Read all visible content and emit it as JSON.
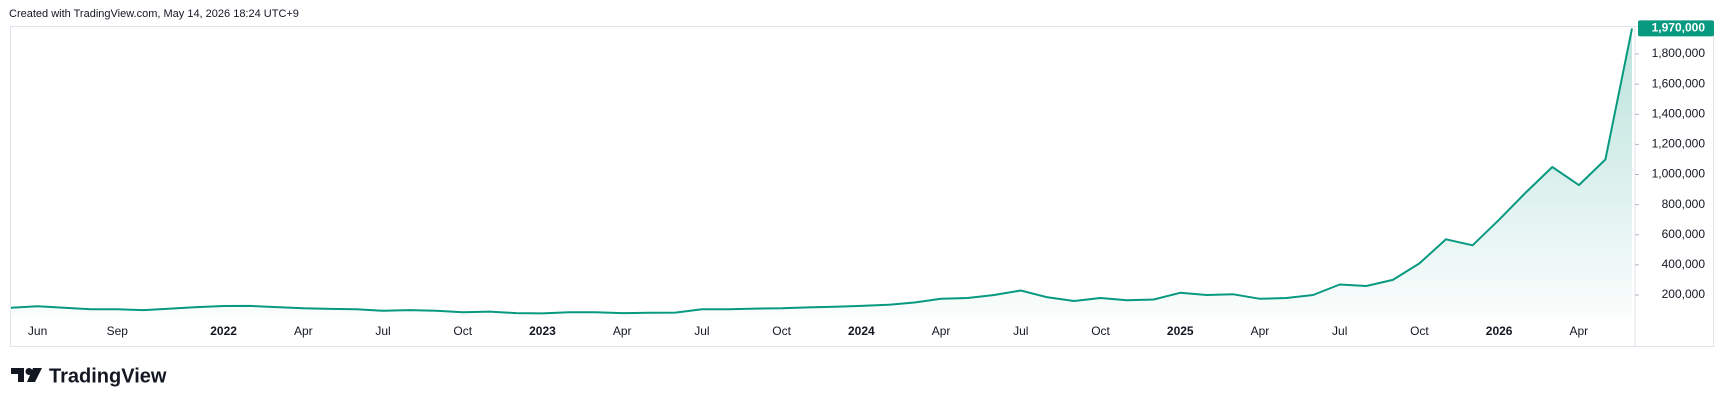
{
  "header": {
    "text": "Created with TradingView.com, May 14, 2026 18:24 UTC+9"
  },
  "footer": {
    "brand": "TradingView"
  },
  "chart_data": {
    "type": "line",
    "categories": [
      null,
      "Jun",
      null,
      null,
      "Sep",
      null,
      null,
      null,
      "2022",
      null,
      null,
      "Apr",
      null,
      null,
      "Jul",
      null,
      null,
      "Oct",
      null,
      null,
      "2023",
      null,
      null,
      "Apr",
      null,
      null,
      "Jul",
      null,
      null,
      "Oct",
      null,
      null,
      "2024",
      null,
      null,
      "Apr",
      null,
      null,
      "Jul",
      null,
      null,
      "Oct",
      null,
      null,
      "2025",
      null,
      null,
      "Apr",
      null,
      null,
      "Jul",
      null,
      null,
      "Oct",
      null,
      null,
      "2026",
      null,
      null,
      "Apr",
      null,
      null
    ],
    "series": [
      {
        "color": "#089981",
        "values": [
          115000,
          125000,
          115000,
          105000,
          105000,
          100000,
          110000,
          120000,
          127000,
          128000,
          120000,
          112000,
          108000,
          105000,
          95000,
          100000,
          95000,
          85000,
          90000,
          80000,
          78000,
          85000,
          85000,
          80000,
          82000,
          83000,
          105000,
          105000,
          110000,
          112000,
          118000,
          122000,
          128000,
          135000,
          150000,
          175000,
          180000,
          200000,
          230000,
          185000,
          160000,
          180000,
          165000,
          170000,
          215000,
          200000,
          205000,
          175000,
          180000,
          200000,
          270000,
          260000,
          300000,
          410000,
          570000,
          530000,
          700000,
          880000,
          1050000,
          930000,
          1100000,
          1970000
        ]
      }
    ],
    "last_label": "1,970,000",
    "ylim": [
      54000,
      1986000
    ],
    "yticks": [
      {
        "value": 200000,
        "label": "200,000"
      },
      {
        "value": 400000,
        "label": "400,000"
      },
      {
        "value": 600000,
        "label": "600,000"
      },
      {
        "value": 800000,
        "label": "800,000"
      },
      {
        "value": 1000000,
        "label": "1,000,000"
      },
      {
        "value": 1200000,
        "label": "1,200,000"
      },
      {
        "value": 1400000,
        "label": "1,400,000"
      },
      {
        "value": 1600000,
        "label": "1,600,000"
      },
      {
        "value": 1800000,
        "label": "1,800,000"
      }
    ]
  }
}
